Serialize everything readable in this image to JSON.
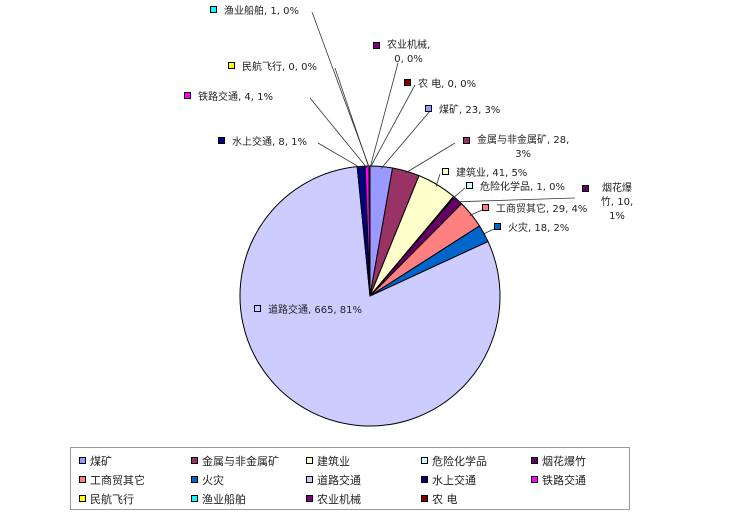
{
  "chart_data": {
    "type": "pie",
    "start": "top",
    "direction": "clockwise",
    "categories": [
      "煤矿",
      "金属与非金属矿",
      "建筑业",
      "危险化学品",
      "烟花爆竹",
      "工商贸其它",
      "火灾",
      "道路交通",
      "水上交通",
      "铁路交通",
      "民航飞行",
      "渔业船舶",
      "农业机械",
      "农 电"
    ],
    "values": [
      23,
      28,
      41,
      1,
      10,
      29,
      18,
      665,
      8,
      4,
      0,
      1,
      0,
      0
    ],
    "percent_labels": [
      "3%",
      "3%",
      "5%",
      "0%",
      "1%",
      "4%",
      "2%",
      "81%",
      "1%",
      "1%",
      "0%",
      "0%",
      "0%",
      "0%"
    ],
    "data_labels": [
      "煤矿, 23, 3%",
      "金属与非金属矿, 28, 3%",
      "建筑业, 41, 5%",
      "危险化学品, 1, 0%",
      "烟花爆竹, 10, 1%",
      "工商贸其它, 29, 4%",
      "火灾, 18, 2%",
      "道路交通, 665, 81%",
      "水上交通, 8, 1%",
      "铁路交通, 4, 1%",
      "民航飞行, 0, 0%",
      "渔业船舶, 1, 0%",
      "农业机械, 0, 0%",
      "农 电, 0, 0%"
    ],
    "colors": [
      "#9999FF",
      "#993366",
      "#FFFFCC",
      "#CCFFFF",
      "#660066",
      "#FF8080",
      "#0066CC",
      "#CCCCFF",
      "#000080",
      "#FF00FF",
      "#FFFF00",
      "#00FFFF",
      "#800080",
      "#800000"
    ],
    "legend": "bottom"
  }
}
